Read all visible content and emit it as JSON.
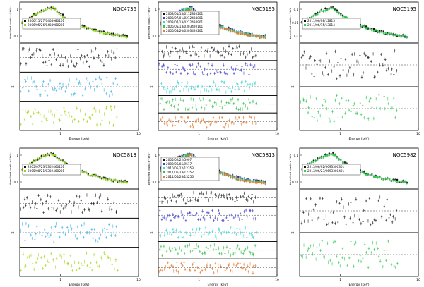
{
  "figure": {
    "xlabel": "Energy (keV)",
    "ylabel_spec": "Normalized counts s⁻¹ keV⁻¹",
    "ylabel_resid": "χ"
  },
  "chart_data": [
    {
      "type": "scatter",
      "title": "NGC4736",
      "xlim": [
        0.3,
        10
      ],
      "xscale": "log",
      "legend": [
        "2006/11/27/0404980101",
        "2006/05/26/0404980201"
      ],
      "colors": [
        "#111111",
        "#8fd620"
      ],
      "nresid": 3,
      "residColors": [
        "#222222",
        "#39b4e6",
        "#a6d61a"
      ],
      "ticks": [
        "1",
        "10"
      ],
      "yticks_spec": [
        "0.1",
        "1"
      ]
    },
    {
      "type": "scatter",
      "title": "NGC5195",
      "xlim": [
        0.3,
        10
      ],
      "xscale": "log",
      "legend": [
        "2003/01/15/0112840201",
        "2003/07/01/0212484801",
        "2003/07/13/0212484901",
        "2006/05/13/0303420101",
        "2006/05/20/0303420201"
      ],
      "colors": [
        "#111111",
        "#3f3fcf",
        "#3cd4d4",
        "#33c24a",
        "#e67a2e"
      ],
      "nresid": 5,
      "residColors": [
        "#222222",
        "#3f3fcf",
        "#3cd4d4",
        "#33c24a",
        "#e67a2e"
      ],
      "ticks": [
        "1",
        "10"
      ],
      "yticks_spec": [
        "0.1",
        "1"
      ]
    },
    {
      "type": "scatter",
      "title": "NGC5195",
      "xlim": [
        0.3,
        10
      ],
      "xscale": "log",
      "legend": [
        "2011/06/08/12813",
        "2011/06/15/13814"
      ],
      "colors": [
        "#111111",
        "#33cc55"
      ],
      "nresid": 2,
      "residColors": [
        "#222222",
        "#33cc55"
      ],
      "ticks": [
        "1",
        "10"
      ],
      "yticks_spec": [
        "10⁻³",
        "0.01",
        "0.1"
      ]
    },
    {
      "type": "scatter",
      "title": "NGC5813",
      "xlim": [
        0.3,
        10
      ],
      "xscale": "log",
      "legend": [
        "2005/07/23/0302460101",
        "2005/08/21/0302460201"
      ],
      "colors": [
        "#111111",
        "#8fd620"
      ],
      "nresid": 3,
      "residColors": [
        "#222222",
        "#39b4e6",
        "#a6d61a"
      ],
      "ticks": [
        "1",
        "10"
      ],
      "yticks_spec": [
        "0.1",
        "1"
      ]
    },
    {
      "type": "scatter",
      "title": "NGC5813",
      "xlim": [
        0.3,
        10
      ],
      "xscale": "log",
      "legend": [
        "2005/02/22/5907",
        "2009/06/05/9517",
        "2010/05/22/12353",
        "2011/06/23/12352",
        "2011/06/28/13256"
      ],
      "colors": [
        "#111111",
        "#3f3fcf",
        "#3cd4d4",
        "#33c24a",
        "#e67a2e"
      ],
      "nresid": 5,
      "residColors": [
        "#222222",
        "#3f3fcf",
        "#3cd4d4",
        "#33c24a",
        "#e67a2e"
      ],
      "ticks": [
        "1",
        "10"
      ],
      "yticks_spec": [
        "0.1",
        "1"
      ]
    },
    {
      "type": "scatter",
      "title": "NGC5982",
      "xlim": [
        0.3,
        10
      ],
      "xscale": "log",
      "legend": [
        "2013/06/02/0693300301",
        "2013/06/23/0693300401"
      ],
      "colors": [
        "#111111",
        "#33cc55"
      ],
      "nresid": 2,
      "residColors": [
        "#222222",
        "#33cc55"
      ],
      "ticks": [
        "1",
        "10"
      ],
      "yticks_spec": [
        "0.01",
        "0.1"
      ]
    }
  ]
}
